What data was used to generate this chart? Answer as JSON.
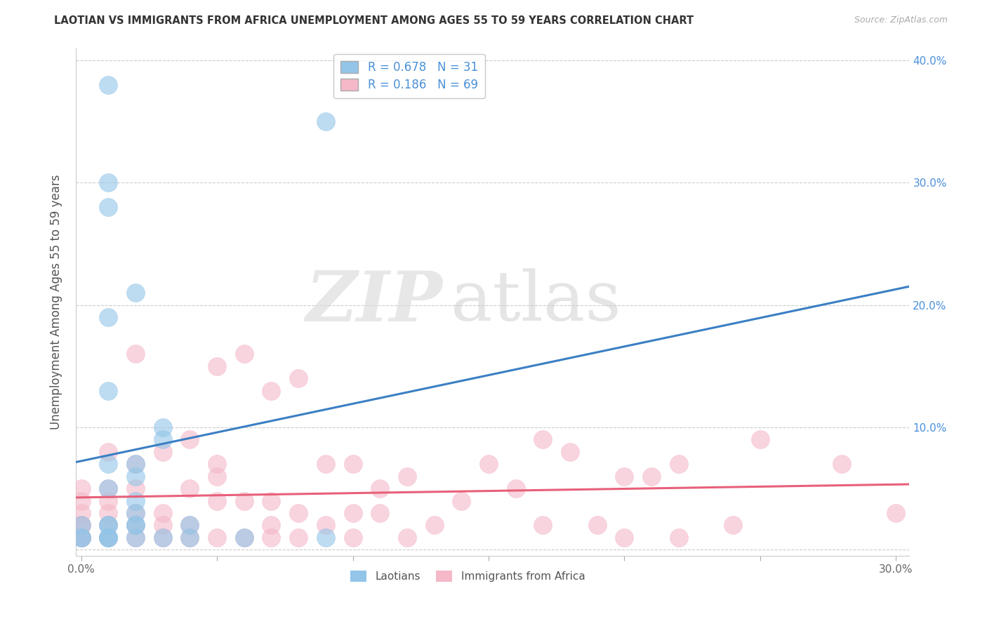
{
  "title": "LAOTIAN VS IMMIGRANTS FROM AFRICA UNEMPLOYMENT AMONG AGES 55 TO 59 YEARS CORRELATION CHART",
  "source": "Source: ZipAtlas.com",
  "ylabel": "Unemployment Among Ages 55 to 59 years",
  "xlim": [
    -0.002,
    0.305
  ],
  "ylim": [
    -0.005,
    0.41
  ],
  "xticks": [
    0.0,
    0.05,
    0.1,
    0.15,
    0.2,
    0.25,
    0.3
  ],
  "xtick_labels": [
    "0.0%",
    "",
    "",
    "",
    "",
    "",
    "30.0%"
  ],
  "yticks": [
    0.0,
    0.1,
    0.2,
    0.3,
    0.4
  ],
  "ytick_labels_left": [
    "",
    "",
    "",
    "",
    ""
  ],
  "ytick_labels_right": [
    "",
    "10.0%",
    "20.0%",
    "30.0%",
    "40.0%"
  ],
  "laotian_color": "#92C5E8",
  "africa_color": "#F4B8C8",
  "laotian_R": 0.678,
  "laotian_N": 31,
  "africa_R": 0.186,
  "africa_N": 69,
  "laotian_line_color": "#3B7FC4",
  "africa_line_color": "#E8607A",
  "legend_labels": [
    "Laotians",
    "Immigrants from Africa"
  ],
  "laotian_x": [
    0.0,
    0.0,
    0.0,
    0.01,
    0.01,
    0.01,
    0.01,
    0.01,
    0.01,
    0.01,
    0.01,
    0.01,
    0.01,
    0.01,
    0.01,
    0.02,
    0.02,
    0.02,
    0.02,
    0.02,
    0.02,
    0.02,
    0.02,
    0.03,
    0.03,
    0.03,
    0.04,
    0.04,
    0.06,
    0.09,
    0.09
  ],
  "laotian_y": [
    0.01,
    0.01,
    0.02,
    0.01,
    0.01,
    0.01,
    0.02,
    0.02,
    0.05,
    0.07,
    0.13,
    0.19,
    0.28,
    0.3,
    0.38,
    0.01,
    0.02,
    0.02,
    0.03,
    0.04,
    0.06,
    0.07,
    0.21,
    0.01,
    0.09,
    0.1,
    0.01,
    0.02,
    0.01,
    0.35,
    0.01
  ],
  "africa_x": [
    0.0,
    0.0,
    0.0,
    0.0,
    0.0,
    0.0,
    0.0,
    0.0,
    0.01,
    0.01,
    0.01,
    0.01,
    0.01,
    0.01,
    0.02,
    0.02,
    0.02,
    0.02,
    0.02,
    0.02,
    0.03,
    0.03,
    0.03,
    0.03,
    0.04,
    0.04,
    0.04,
    0.04,
    0.05,
    0.05,
    0.05,
    0.05,
    0.05,
    0.06,
    0.06,
    0.06,
    0.07,
    0.07,
    0.07,
    0.07,
    0.08,
    0.08,
    0.08,
    0.09,
    0.09,
    0.1,
    0.1,
    0.1,
    0.11,
    0.11,
    0.12,
    0.12,
    0.13,
    0.14,
    0.15,
    0.16,
    0.17,
    0.17,
    0.18,
    0.19,
    0.2,
    0.2,
    0.21,
    0.22,
    0.22,
    0.24,
    0.25,
    0.28,
    0.3
  ],
  "africa_y": [
    0.01,
    0.01,
    0.01,
    0.02,
    0.02,
    0.03,
    0.04,
    0.05,
    0.01,
    0.02,
    0.03,
    0.04,
    0.05,
    0.08,
    0.01,
    0.02,
    0.03,
    0.05,
    0.07,
    0.16,
    0.01,
    0.02,
    0.03,
    0.08,
    0.01,
    0.02,
    0.05,
    0.09,
    0.01,
    0.04,
    0.06,
    0.07,
    0.15,
    0.01,
    0.04,
    0.16,
    0.01,
    0.02,
    0.04,
    0.13,
    0.01,
    0.03,
    0.14,
    0.02,
    0.07,
    0.01,
    0.03,
    0.07,
    0.03,
    0.05,
    0.01,
    0.06,
    0.02,
    0.04,
    0.07,
    0.05,
    0.02,
    0.09,
    0.08,
    0.02,
    0.01,
    0.06,
    0.06,
    0.01,
    0.07,
    0.02,
    0.09,
    0.07,
    0.03
  ]
}
